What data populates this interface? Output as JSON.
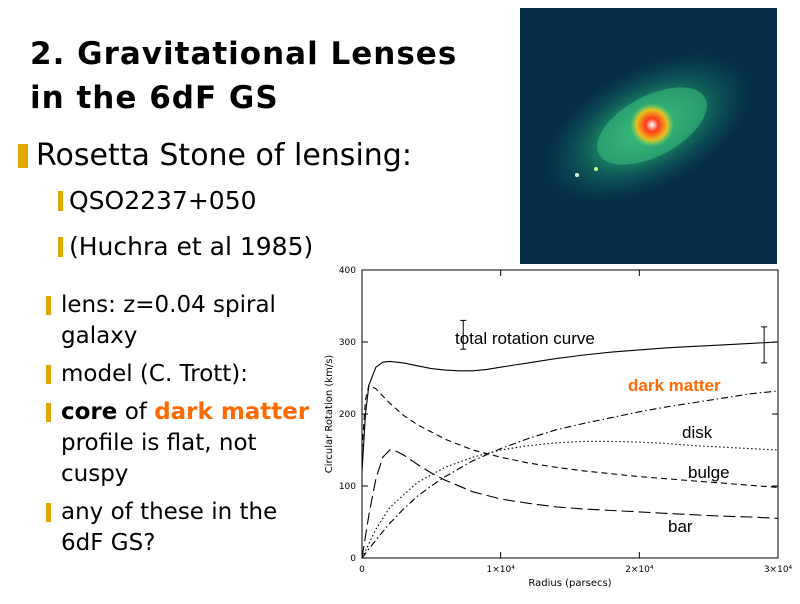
{
  "slide": {
    "title_line1": "2. Gravitational Lenses",
    "title_line2": "in the 6dF GS",
    "bullet1": "Rosetta Stone of lensing:",
    "sub1": "QSO2237+050",
    "sub2": "(Huchra et al 1985)",
    "items": [
      {
        "text": "lens: z=0.04 spiral galaxy"
      },
      {
        "text": "model (C. Trott):"
      },
      {
        "pre": "core",
        "mid": " of ",
        "hl": "dark matter",
        "post": " profile is flat, not cuspy"
      },
      {
        "text": "any of these in the 6dF GS?"
      }
    ]
  },
  "colors": {
    "bullet": "#e0a800",
    "highlight": "#ff6a00",
    "photo_bg": "#062e48"
  },
  "image": {
    "subject": "galaxy-lens-photo"
  },
  "chart_data": {
    "type": "line",
    "xlabel": "Radius (parsecs)",
    "ylabel": "Circular Rotation (km/s)",
    "xlim": [
      0,
      30000
    ],
    "ylim": [
      0,
      400
    ],
    "x_ticks": [
      {
        "v": 0,
        "label": "0"
      },
      {
        "v": 10000,
        "label": "1×10⁴"
      },
      {
        "v": 20000,
        "label": "2×10⁴"
      },
      {
        "v": 30000,
        "label": "3×10⁴"
      }
    ],
    "y_ticks": [
      0,
      100,
      200,
      300,
      400
    ],
    "series": [
      {
        "name": "total rotation curve",
        "style": "solid",
        "x": [
          0,
          250,
          500,
          1000,
          1500,
          2000,
          3000,
          4000,
          5000,
          6000,
          7000,
          8000,
          9000,
          10000,
          11000,
          12000,
          13000,
          14000,
          16000,
          18000,
          20000,
          22000,
          24000,
          26000,
          28000,
          30000
        ],
        "y": [
          120,
          200,
          240,
          265,
          272,
          273,
          271,
          267,
          263,
          261,
          260,
          260,
          262,
          265,
          268,
          271,
          274,
          277,
          282,
          286,
          289,
          292,
          294,
          296,
          298,
          300
        ]
      },
      {
        "name": "dark matter",
        "style": "dashdot",
        "x": [
          0,
          1000,
          2000,
          3000,
          4000,
          5000,
          6000,
          8000,
          10000,
          12000,
          14000,
          16000,
          18000,
          20000,
          22000,
          24000,
          26000,
          28000,
          30000
        ],
        "y": [
          0,
          25,
          48,
          68,
          86,
          100,
          113,
          135,
          152,
          166,
          178,
          187,
          195,
          203,
          210,
          216,
          222,
          228,
          232
        ]
      },
      {
        "name": "disk",
        "style": "dotted",
        "x": [
          0,
          1000,
          2000,
          4000,
          6000,
          8000,
          10000,
          12000,
          14000,
          16000,
          18000,
          20000,
          22000,
          24000,
          26000,
          28000,
          30000
        ],
        "y": [
          0,
          40,
          70,
          105,
          126,
          140,
          150,
          156,
          160,
          162,
          162,
          161,
          159,
          156,
          154,
          152,
          150
        ]
      },
      {
        "name": "bulge",
        "style": "dashed",
        "x": [
          0,
          250,
          500,
          1000,
          1500,
          2000,
          3000,
          4000,
          6000,
          8000,
          10000,
          12000,
          14000,
          16000,
          18000,
          20000,
          22000,
          24000,
          26000,
          28000,
          30000
        ],
        "y": [
          150,
          220,
          240,
          235,
          225,
          215,
          198,
          185,
          165,
          150,
          140,
          132,
          126,
          121,
          117,
          113,
          110,
          107,
          104,
          101,
          98
        ]
      },
      {
        "name": "bar",
        "style": "longdash",
        "x": [
          0,
          500,
          1000,
          1500,
          2000,
          2500,
          3000,
          4000,
          5000,
          6000,
          8000,
          10000,
          12000,
          14000,
          16000,
          18000,
          20000,
          22000,
          24000,
          26000,
          28000,
          30000
        ],
        "y": [
          0,
          60,
          110,
          140,
          150,
          148,
          143,
          130,
          118,
          108,
          92,
          82,
          76,
          71,
          68,
          66,
          64,
          62,
          60,
          58,
          57,
          55
        ]
      }
    ],
    "error_bars": [
      {
        "x": 7300,
        "y": 310,
        "err": 20
      },
      {
        "x": 29000,
        "y": 296,
        "err": 25
      }
    ],
    "annotations": [
      {
        "series": 0,
        "text": "total rotation curve",
        "color": "#000000"
      },
      {
        "series": 1,
        "text": "dark matter",
        "color": "#ff6a00"
      },
      {
        "series": 2,
        "text": "disk",
        "color": "#000000"
      },
      {
        "series": 3,
        "text": "bulge",
        "color": "#000000"
      },
      {
        "series": 4,
        "text": "bar",
        "color": "#000000"
      }
    ]
  }
}
